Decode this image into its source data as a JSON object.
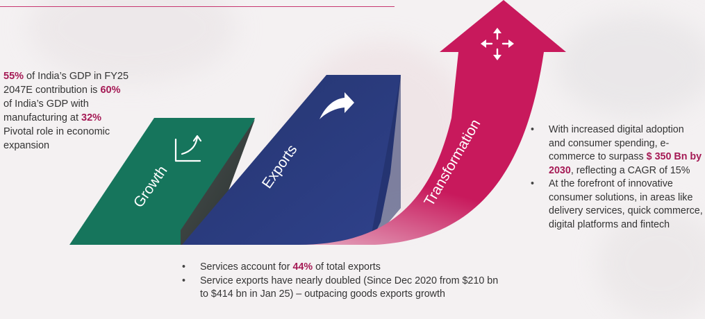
{
  "colors": {
    "growth": "#16755c",
    "exports": "#2d3e86",
    "transformation": "#c8195c",
    "highlight": "#a51a55"
  },
  "stages": {
    "growth": {
      "label": "Growth",
      "icon": "growth-chart-icon"
    },
    "exports": {
      "label": "Exports",
      "icon": "curved-arrow-icon"
    },
    "transformation": {
      "label": "Transformation",
      "icon": "four-way-arrows-icon"
    }
  },
  "left": {
    "l1_hl": "55%",
    "l1_text": " of India’s GDP in FY25",
    "l2_text": "2047E contribution is ",
    "l2_hl": "60%",
    "l3_text": "of India’s GDP with",
    "l4_text": "manufacturing at ",
    "l4_hl": "32%",
    "l5_text": "Pivotal role in economic",
    "l6_text": "expansion"
  },
  "right": {
    "b1_pre": "With increased digital adoption and consumer spending, e-commerce to surpass ",
    "b1_hl": "$ 350 Bn by 2030",
    "b1_post": ", reflecting a CAGR of 15%",
    "b2": "At the forefront of innovative consumer solutions, in areas like delivery services, quick commerce, digital platforms and fintech"
  },
  "bottom": {
    "b1_pre": "Services account for ",
    "b1_hl": "44%",
    "b1_post": " of total exports",
    "b2": "Service exports have nearly doubled (Since Dec 2020 from $210 bn to $414 bn in Jan 25) – outpacing goods exports growth"
  }
}
